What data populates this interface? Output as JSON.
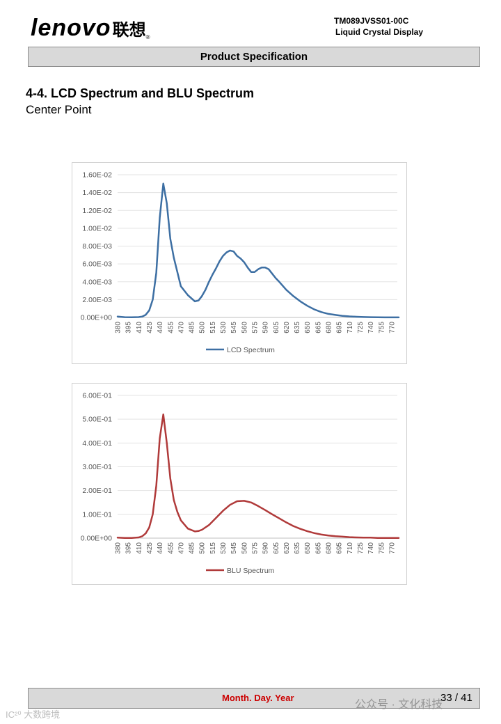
{
  "header": {
    "logo_text": "lenovo",
    "logo_cn": "联想",
    "logo_reg": "®",
    "doc_code": "TM089JVSS01-00C",
    "doc_type": "Liquid Crystal Display",
    "spec_title": "Product Specification"
  },
  "section": {
    "title": "4-4. LCD Spectrum and BLU Spectrum",
    "subtitle": "Center Point"
  },
  "chart_data": [
    {
      "type": "line",
      "title": "",
      "xlabel": "",
      "ylabel": "",
      "legend_position": "bottom",
      "grid": true,
      "color": "#3d6fa3",
      "ylim": [
        0,
        0.016
      ],
      "y_ticks": [
        "0.00E+00",
        "2.00E-03",
        "4.00E-03",
        "6.00E-03",
        "8.00E-03",
        "1.00E-02",
        "1.20E-02",
        "1.40E-02",
        "1.60E-02"
      ],
      "x_ticks": [
        "380",
        "395",
        "410",
        "425",
        "440",
        "455",
        "470",
        "485",
        "500",
        "515",
        "530",
        "545",
        "560",
        "575",
        "590",
        "605",
        "620",
        "635",
        "650",
        "665",
        "680",
        "695",
        "710",
        "725",
        "740",
        "755",
        "770"
      ],
      "series": [
        {
          "name": "LCD Spectrum",
          "x": [
            380,
            390,
            400,
            410,
            415,
            420,
            425,
            430,
            435,
            440,
            445,
            450,
            455,
            460,
            470,
            480,
            490,
            495,
            500,
            505,
            510,
            515,
            520,
            525,
            530,
            535,
            540,
            545,
            550,
            555,
            560,
            565,
            570,
            575,
            580,
            585,
            590,
            595,
            600,
            605,
            610,
            620,
            630,
            640,
            650,
            660,
            670,
            680,
            690,
            700,
            710,
            720,
            730,
            740,
            750,
            760,
            770,
            780
          ],
          "y": [
            0.0001,
            3e-05,
            2e-05,
            4e-05,
            0.0001,
            0.0003,
            0.0008,
            0.002,
            0.005,
            0.0112,
            0.015,
            0.0128,
            0.0088,
            0.0067,
            0.0035,
            0.0025,
            0.0018,
            0.0019,
            0.0024,
            0.0031,
            0.004,
            0.0048,
            0.0055,
            0.0063,
            0.0069,
            0.0073,
            0.0075,
            0.0074,
            0.0069,
            0.0066,
            0.0062,
            0.0056,
            0.0051,
            0.0051,
            0.0054,
            0.0056,
            0.0056,
            0.0054,
            0.0049,
            0.0044,
            0.004,
            0.0031,
            0.0024,
            0.0018,
            0.0013,
            0.0009,
            0.0006,
            0.0004,
            0.00028,
            0.00018,
            0.00012,
            8e-05,
            5e-05,
            3e-05,
            2e-05,
            1e-05,
            1e-05,
            1e-05
          ]
        }
      ]
    },
    {
      "type": "line",
      "title": "",
      "xlabel": "",
      "ylabel": "",
      "legend_position": "bottom",
      "grid": true,
      "color": "#b03a3a",
      "ylim": [
        0,
        0.6
      ],
      "y_ticks": [
        "0.00E+00",
        "1.00E-01",
        "2.00E-01",
        "3.00E-01",
        "4.00E-01",
        "5.00E-01",
        "6.00E-01"
      ],
      "x_ticks": [
        "380",
        "395",
        "410",
        "425",
        "440",
        "455",
        "470",
        "485",
        "500",
        "515",
        "530",
        "545",
        "560",
        "575",
        "590",
        "605",
        "620",
        "635",
        "650",
        "665",
        "680",
        "695",
        "710",
        "725",
        "740",
        "755",
        "770"
      ],
      "series": [
        {
          "name": "BLU Spectrum",
          "x": [
            380,
            390,
            400,
            410,
            415,
            420,
            425,
            430,
            435,
            440,
            445,
            450,
            455,
            460,
            465,
            470,
            480,
            490,
            495,
            500,
            510,
            520,
            530,
            540,
            550,
            560,
            570,
            580,
            590,
            600,
            610,
            620,
            630,
            640,
            650,
            660,
            670,
            680,
            690,
            700,
            710,
            720,
            730,
            740,
            750,
            760,
            770,
            780
          ],
          "y": [
            0.002,
            0.001,
            0.001,
            0.003,
            0.008,
            0.02,
            0.045,
            0.1,
            0.22,
            0.42,
            0.52,
            0.4,
            0.25,
            0.16,
            0.11,
            0.075,
            0.04,
            0.028,
            0.03,
            0.035,
            0.055,
            0.085,
            0.115,
            0.14,
            0.155,
            0.157,
            0.15,
            0.135,
            0.118,
            0.1,
            0.083,
            0.066,
            0.051,
            0.039,
            0.029,
            0.021,
            0.015,
            0.011,
            0.008,
            0.006,
            0.004,
            0.003,
            0.002,
            0.002,
            0.001,
            0.001,
            0.001,
            0.001
          ]
        }
      ]
    }
  ],
  "footer": {
    "date_text": "Month. Day. Year",
    "page_text": "33 / 41",
    "watermark_left": "IC²⁰ 大数跨境",
    "watermark_right": "公众号 · 文化科技"
  }
}
